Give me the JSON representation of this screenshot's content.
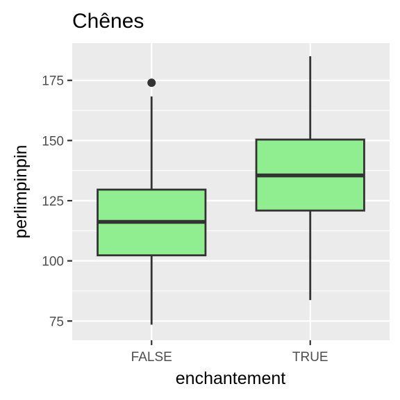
{
  "chart_data": {
    "type": "boxplot",
    "title": "Chênes",
    "xlabel": "enchantement",
    "ylabel": "perlimpinpin",
    "categories": [
      "FALSE",
      "TRUE"
    ],
    "yticks": [
      75,
      100,
      125,
      150,
      175
    ],
    "ylim": [
      67,
      190.5
    ],
    "grid": true,
    "fill_color": "#90ee90",
    "outline_color": "#333333",
    "panel_background": "#ebebeb",
    "boxes": [
      {
        "category": "FALSE",
        "whisker_low": 73.5,
        "q1": 102.3,
        "median": 116.2,
        "q3": 129.6,
        "whisker_high": 168.3,
        "outliers": [
          174.0
        ]
      },
      {
        "category": "TRUE",
        "whisker_low": 83.7,
        "q1": 120.9,
        "median": 135.5,
        "q3": 150.4,
        "whisker_high": 185.0,
        "outliers": []
      }
    ]
  }
}
